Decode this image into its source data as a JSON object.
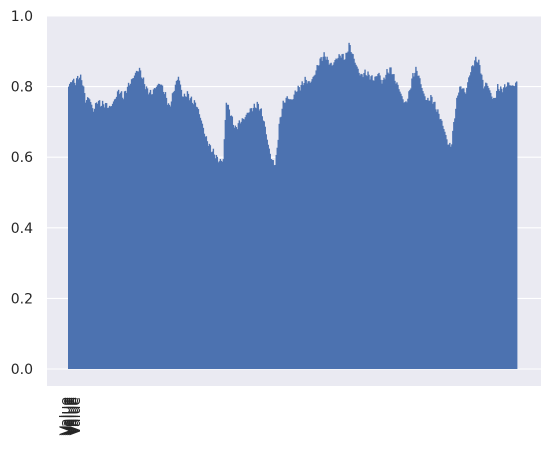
{
  "chart_data": {
    "type": "bar",
    "style": "seaborn-darkgrid",
    "colors": {
      "background": "#eaeaf2",
      "grid": "#ffffff",
      "bar": "#4c72b0",
      "text": "#262626"
    },
    "grid": true,
    "ylim": [
      0,
      1.0
    ],
    "yticks": [
      "0.0",
      "0.2",
      "0.4",
      "0.6",
      "0.8",
      "1.0"
    ],
    "xtick_label": "Value",
    "xlabel": "",
    "ylabel": "",
    "title": "",
    "profile": [
      [
        0.0,
        0.8
      ],
      [
        0.008,
        0.82
      ],
      [
        0.015,
        0.81
      ],
      [
        0.022,
        0.83
      ],
      [
        0.03,
        0.82
      ],
      [
        0.038,
        0.76
      ],
      [
        0.046,
        0.77
      ],
      [
        0.055,
        0.73
      ],
      [
        0.064,
        0.76
      ],
      [
        0.072,
        0.75
      ],
      [
        0.082,
        0.75
      ],
      [
        0.092,
        0.74
      ],
      [
        0.102,
        0.76
      ],
      [
        0.112,
        0.79
      ],
      [
        0.122,
        0.77
      ],
      [
        0.132,
        0.8
      ],
      [
        0.142,
        0.82
      ],
      [
        0.15,
        0.84
      ],
      [
        0.158,
        0.85
      ],
      [
        0.166,
        0.82
      ],
      [
        0.175,
        0.79
      ],
      [
        0.185,
        0.78
      ],
      [
        0.195,
        0.8
      ],
      [
        0.205,
        0.81
      ],
      [
        0.215,
        0.78
      ],
      [
        0.225,
        0.74
      ],
      [
        0.235,
        0.79
      ],
      [
        0.245,
        0.83
      ],
      [
        0.255,
        0.77
      ],
      [
        0.265,
        0.78
      ],
      [
        0.275,
        0.76
      ],
      [
        0.285,
        0.75
      ],
      [
        0.295,
        0.71
      ],
      [
        0.305,
        0.66
      ],
      [
        0.315,
        0.63
      ],
      [
        0.325,
        0.61
      ],
      [
        0.335,
        0.59
      ],
      [
        0.345,
        0.59
      ],
      [
        0.352,
        0.76
      ],
      [
        0.362,
        0.72
      ],
      [
        0.372,
        0.68
      ],
      [
        0.382,
        0.7
      ],
      [
        0.392,
        0.71
      ],
      [
        0.402,
        0.73
      ],
      [
        0.412,
        0.74
      ],
      [
        0.422,
        0.75
      ],
      [
        0.43,
        0.73
      ],
      [
        0.438,
        0.69
      ],
      [
        0.446,
        0.63
      ],
      [
        0.454,
        0.59
      ],
      [
        0.462,
        0.58
      ],
      [
        0.47,
        0.69
      ],
      [
        0.478,
        0.75
      ],
      [
        0.488,
        0.77
      ],
      [
        0.498,
        0.76
      ],
      [
        0.508,
        0.79
      ],
      [
        0.518,
        0.8
      ],
      [
        0.528,
        0.82
      ],
      [
        0.538,
        0.81
      ],
      [
        0.548,
        0.83
      ],
      [
        0.556,
        0.86
      ],
      [
        0.564,
        0.88
      ],
      [
        0.572,
        0.89
      ],
      [
        0.58,
        0.87
      ],
      [
        0.588,
        0.86
      ],
      [
        0.598,
        0.88
      ],
      [
        0.608,
        0.89
      ],
      [
        0.618,
        0.88
      ],
      [
        0.626,
        0.92
      ],
      [
        0.634,
        0.89
      ],
      [
        0.642,
        0.86
      ],
      [
        0.652,
        0.83
      ],
      [
        0.662,
        0.84
      ],
      [
        0.672,
        0.83
      ],
      [
        0.682,
        0.82
      ],
      [
        0.692,
        0.84
      ],
      [
        0.7,
        0.81
      ],
      [
        0.71,
        0.84
      ],
      [
        0.72,
        0.85
      ],
      [
        0.728,
        0.82
      ],
      [
        0.736,
        0.8
      ],
      [
        0.744,
        0.77
      ],
      [
        0.752,
        0.75
      ],
      [
        0.76,
        0.78
      ],
      [
        0.768,
        0.83
      ],
      [
        0.776,
        0.85
      ],
      [
        0.784,
        0.82
      ],
      [
        0.792,
        0.78
      ],
      [
        0.8,
        0.76
      ],
      [
        0.81,
        0.77
      ],
      [
        0.82,
        0.74
      ],
      [
        0.83,
        0.71
      ],
      [
        0.838,
        0.68
      ],
      [
        0.846,
        0.64
      ],
      [
        0.854,
        0.63
      ],
      [
        0.862,
        0.72
      ],
      [
        0.87,
        0.79
      ],
      [
        0.878,
        0.8
      ],
      [
        0.886,
        0.78
      ],
      [
        0.894,
        0.83
      ],
      [
        0.902,
        0.86
      ],
      [
        0.91,
        0.88
      ],
      [
        0.918,
        0.86
      ],
      [
        0.926,
        0.8
      ],
      [
        0.934,
        0.81
      ],
      [
        0.942,
        0.78
      ],
      [
        0.95,
        0.76
      ],
      [
        0.958,
        0.8
      ],
      [
        0.966,
        0.79
      ],
      [
        0.974,
        0.8
      ],
      [
        0.982,
        0.81
      ],
      [
        0.99,
        0.8
      ],
      [
        1.0,
        0.81
      ]
    ]
  }
}
